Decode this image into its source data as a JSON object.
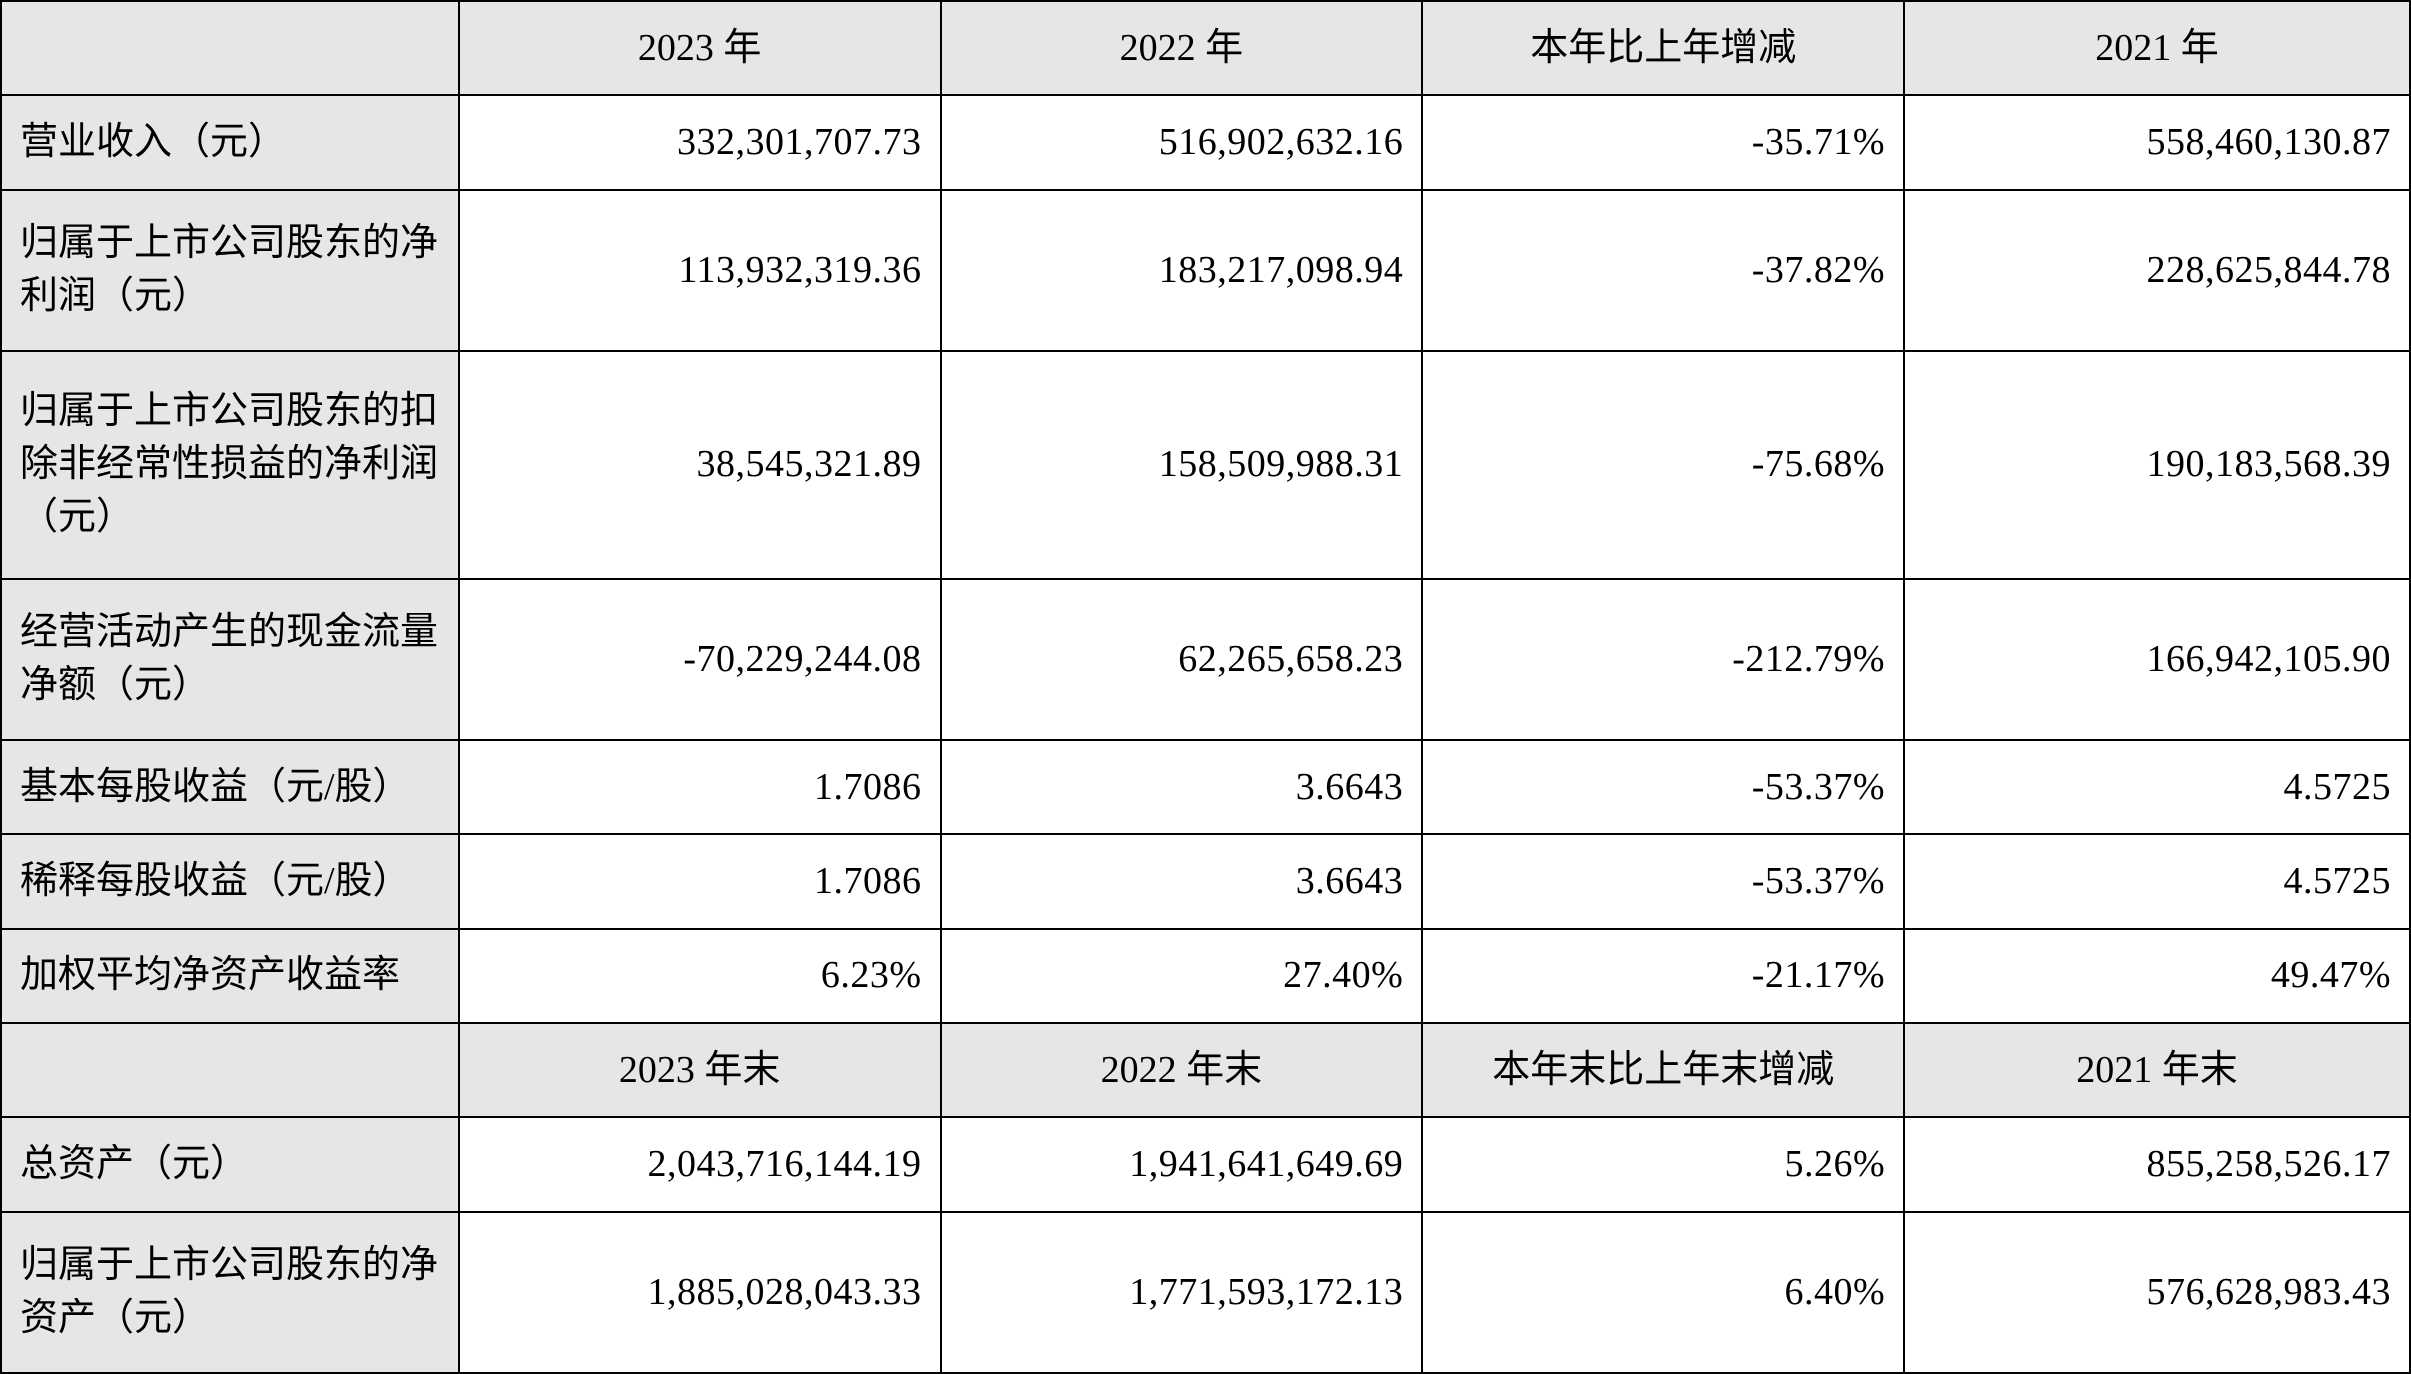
{
  "table": {
    "type": "table",
    "background_color": "#ffffff",
    "header_bg": "#e6e6e6",
    "border_color": "#000000",
    "text_color": "#000000",
    "fontsize": 38,
    "header1": {
      "c0": "",
      "c1": "2023 年",
      "c2": "2022 年",
      "c3": "本年比上年增减",
      "c4": "2021 年"
    },
    "rows1": [
      {
        "label": "营业收入（元）",
        "c1": "332,301,707.73",
        "c2": "516,902,632.16",
        "c3": "-35.71%",
        "c4": "558,460,130.87"
      },
      {
        "label": "归属于上市公司股东的净利润（元）",
        "c1": "113,932,319.36",
        "c2": "183,217,098.94",
        "c3": "-37.82%",
        "c4": "228,625,844.78"
      },
      {
        "label": "归属于上市公司股东的扣除非经常性损益的净利润（元）",
        "c1": "38,545,321.89",
        "c2": "158,509,988.31",
        "c3": "-75.68%",
        "c4": "190,183,568.39"
      },
      {
        "label": "经营活动产生的现金流量净额（元）",
        "c1": "-70,229,244.08",
        "c2": "62,265,658.23",
        "c3": "-212.79%",
        "c4": "166,942,105.90"
      },
      {
        "label": "基本每股收益（元/股）",
        "c1": "1.7086",
        "c2": "3.6643",
        "c3": "-53.37%",
        "c4": "4.5725"
      },
      {
        "label": "稀释每股收益（元/股）",
        "c1": "1.7086",
        "c2": "3.6643",
        "c3": "-53.37%",
        "c4": "4.5725"
      },
      {
        "label": "加权平均净资产收益率",
        "c1": "6.23%",
        "c2": "27.40%",
        "c3": "-21.17%",
        "c4": "49.47%"
      }
    ],
    "header2": {
      "c0": "",
      "c1": "2023 年末",
      "c2": "2022 年末",
      "c3": "本年末比上年末增减",
      "c4": "2021 年末"
    },
    "rows2": [
      {
        "label": "总资产（元）",
        "c1": "2,043,716,144.19",
        "c2": "1,941,641,649.69",
        "c3": "5.26%",
        "c4": "855,258,526.17"
      },
      {
        "label": "归属于上市公司股东的净资产（元）",
        "c1": "1,885,028,043.33",
        "c2": "1,771,593,172.13",
        "c3": "6.40%",
        "c4": "576,628,983.43"
      }
    ]
  }
}
